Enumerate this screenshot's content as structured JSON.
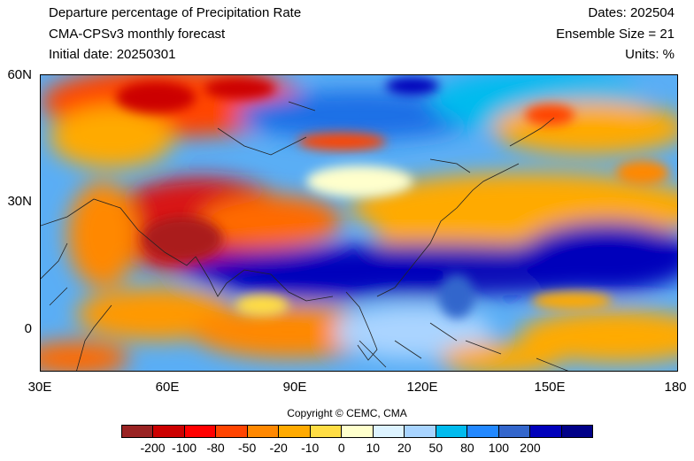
{
  "header": {
    "title": "Departure percentage of Precipitation Rate",
    "model": "CMA-CPSv3 monthly forecast",
    "initial_date": "Initial date: 20250301",
    "dates": "Dates: 202504",
    "ensemble": "Ensemble Size = 21",
    "units": "Units: %"
  },
  "axes": {
    "lat_ticks": [
      "60N",
      "30N",
      "0"
    ],
    "lon_ticks": [
      "30E",
      "60E",
      "90E",
      "120E",
      "150E",
      "180"
    ]
  },
  "copyright": "Copyright © CEMC, CMA",
  "colorbar": {
    "colors": [
      "#992222",
      "#cc0000",
      "#ff0000",
      "#ff4400",
      "#ff8800",
      "#ffaa00",
      "#ffdd44",
      "#ffffcc",
      "#ddf3ff",
      "#a8d4ff",
      "#00bbee",
      "#2288ff",
      "#3366cc",
      "#0000bb",
      "#000088"
    ],
    "labels": [
      "-200",
      "-100",
      "-80",
      "-50",
      "-20",
      "-10",
      "0",
      "10",
      "20",
      "50",
      "80",
      "100",
      "200"
    ]
  }
}
